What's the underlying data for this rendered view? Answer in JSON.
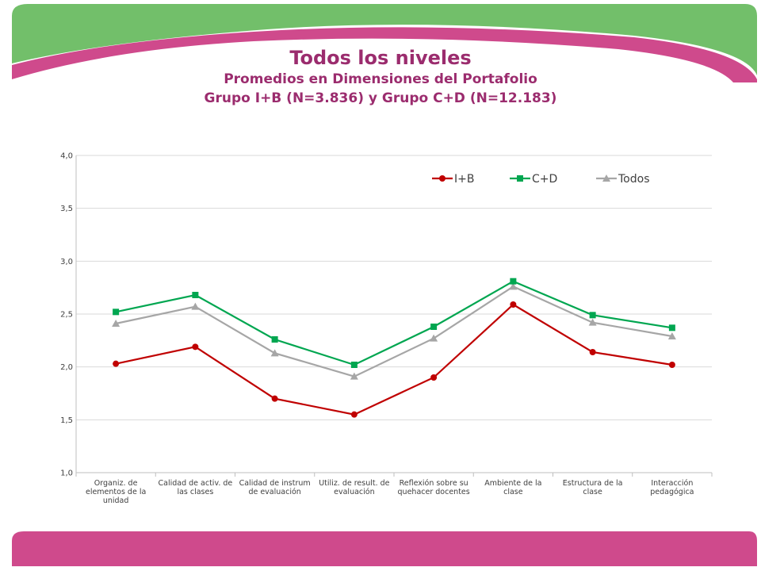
{
  "header": {
    "title": "Todos los niveles",
    "subtitle_line1": "Promedios en Dimensiones del Portafolio",
    "subtitle_line2": "Grupo I+B (N=3.836) y Grupo C+D (N=12.183)"
  },
  "colors": {
    "banner_green": "#72bf6a",
    "banner_pink": "#cf4a8c",
    "title": "#9b2c6e"
  },
  "chart_data": {
    "type": "line",
    "title": "",
    "xlabel": "",
    "ylabel": "",
    "ylim": [
      1.0,
      4.0
    ],
    "yticks": [
      "1,0",
      "1,5",
      "2,0",
      "2,5",
      "3,0",
      "3,5",
      "4,0"
    ],
    "grid": "horizontal",
    "legend_position": "top-right",
    "categories": [
      "Organiz. de elementos de la unidad",
      "Calidad de activ. de las clases",
      "Calidad de instrum de evaluación",
      "Utiliz. de result. de evaluación",
      "Reflexión sobre su quehacer docentes",
      "Ambiente de la clase",
      "Estructura de la clase",
      "Interacción pedagógica"
    ],
    "series": [
      {
        "name": "I+B",
        "color": "#c00000",
        "marker": "circle",
        "values": [
          2.03,
          2.19,
          1.7,
          1.55,
          1.9,
          2.59,
          2.14,
          2.02
        ]
      },
      {
        "name": "C+D",
        "color": "#00a650",
        "marker": "square",
        "values": [
          2.52,
          2.68,
          2.26,
          2.02,
          2.38,
          2.81,
          2.49,
          2.37
        ]
      },
      {
        "name": "Todos",
        "color": "#a6a6a6",
        "marker": "triangle",
        "values": [
          2.41,
          2.57,
          2.13,
          1.91,
          2.27,
          2.76,
          2.42,
          2.29
        ]
      }
    ]
  }
}
